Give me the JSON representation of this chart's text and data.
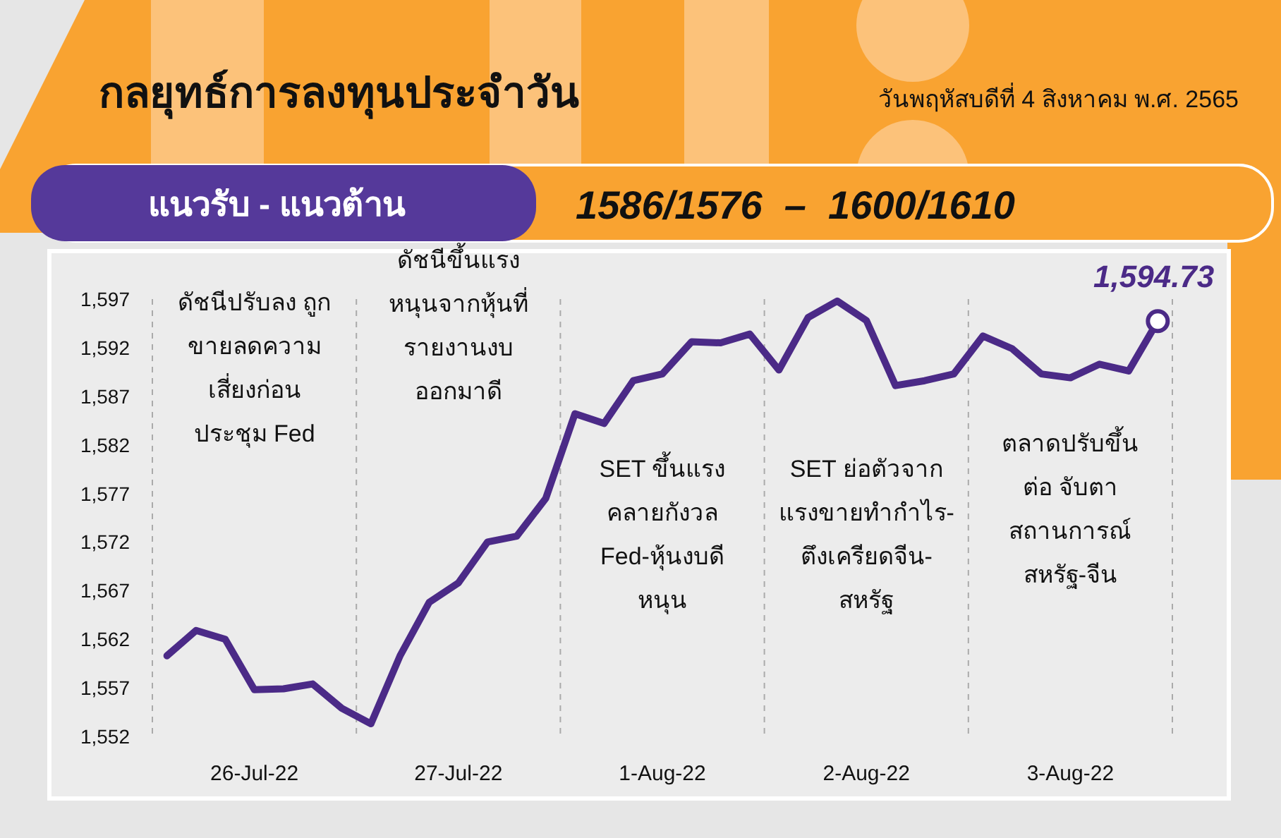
{
  "chart_data": {
    "type": "line",
    "title": "กลยุทธ์การลงทุนประจำวัน",
    "subtitle": "วันพฤหัสบดีที่ 4 สิงหาคม พ.ศ. 2565",
    "categories": [
      null,
      null,
      null,
      "26-Jul-22",
      null,
      null,
      null,
      null,
      null,
      null,
      "27-Jul-22",
      null,
      null,
      null,
      null,
      null,
      null,
      "1-Aug-22",
      null,
      null,
      null,
      null,
      null,
      null,
      "2-Aug-22",
      null,
      null,
      null,
      null,
      null,
      null,
      "3-Aug-22",
      null,
      null,
      null
    ],
    "series": [
      {
        "color": "#4b2a87",
        "values": [
          1560.3,
          1562.9,
          1562.0,
          1556.8,
          1556.9,
          1557.4,
          1554.9,
          1553.3,
          1560.3,
          1565.8,
          1567.8,
          1572.0,
          1572.6,
          1576.5,
          1585.2,
          1584.2,
          1588.6,
          1589.3,
          1592.6,
          1592.5,
          1593.4,
          1589.7,
          1595.1,
          1596.8,
          1594.8,
          1588.1,
          1588.6,
          1589.3,
          1593.2,
          1591.9,
          1589.3,
          1588.9,
          1590.3,
          1589.6,
          1594.73
        ]
      }
    ],
    "ylim": [
      1552,
      1597
    ],
    "yticks": [
      {
        "value": 1552,
        "label": "1,552"
      },
      {
        "value": 1557,
        "label": "1,557"
      },
      {
        "value": 1562,
        "label": "1,562"
      },
      {
        "value": 1567,
        "label": "1,567"
      },
      {
        "value": 1572,
        "label": "1,572"
      },
      {
        "value": 1577,
        "label": "1,577"
      },
      {
        "value": 1582,
        "label": "1,582"
      },
      {
        "value": 1587,
        "label": "1,587"
      },
      {
        "value": 1592,
        "label": "1,592"
      },
      {
        "value": 1597,
        "label": "1,597"
      }
    ],
    "grid": false,
    "marker": "none",
    "line_style": "solid",
    "annotations": [
      "ดัชนีปรับลง ถูก\nขายลดความ\nเสี่ยงก่อน\nประชุม Fed",
      "ดัชนีขึ้นแรง\nหนุนจากหุ้นที่\nรายงานงบ\nออกมาดี",
      "SET ขึ้นแรง\nคลายกังวล\nFed-หุ้นงบดี\nหนุน",
      "SET ย่อตัวจาก\nแรงขายทำกำไร-\nตึงเครียดจีน-\nสหรัฐ",
      "ตลาดปรับขึ้น\nต่อ จับตา\nสถานการณ์\nสหรัฐ-จีน",
      {
        "text": "1,594.73",
        "y": 1594.73
      },
      "แนวรับ - แนวต้าน",
      "1586/1576  –  1600/1610"
    ]
  }
}
